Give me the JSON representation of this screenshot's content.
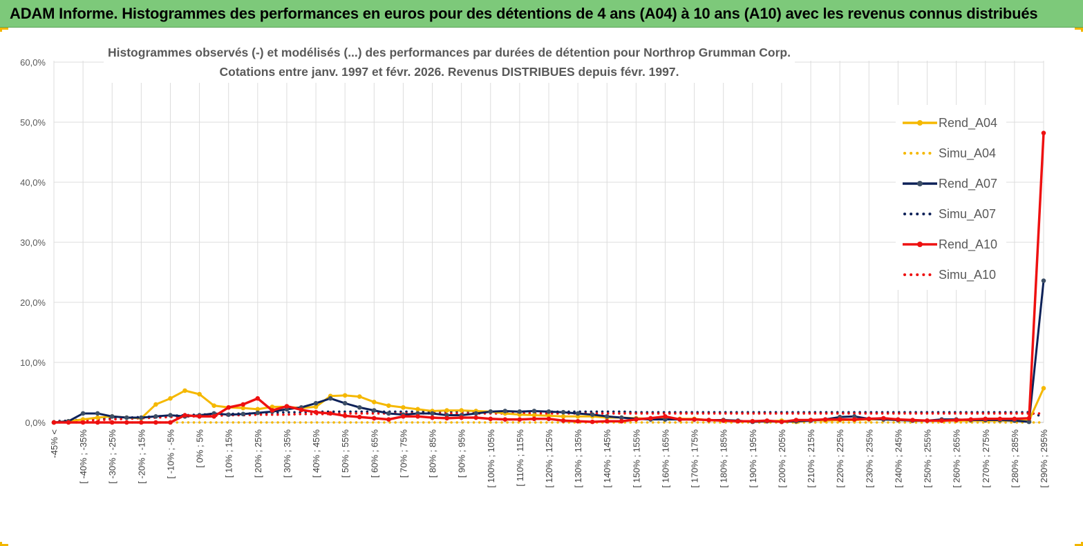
{
  "header": {
    "banner_title": "ADAM Informe. Histogrammes des performances en euros pour des détentions de 4 ans (A04) à 10 ans (A10) avec les revenus connus distribués"
  },
  "colors": {
    "banner_bg": "#7dc97a",
    "a04": "#f5b800",
    "a07": "#0d2158",
    "a10": "#ee1111",
    "grid": "#dcdcdc"
  },
  "chart_data": {
    "type": "line",
    "title_line1": "Histogrammes observés (-) et modélisés (...) des performances par durées de détention pour Northrop Grumman Corp.",
    "title_line2": "Cotations entre janv. 1997 et févr. 2026. Revenus DISTRIBUES depuis févr. 1997.",
    "ylim": [
      0,
      60
    ],
    "yticks": [
      0,
      10,
      20,
      30,
      40,
      50,
      60
    ],
    "ytick_labels": [
      "0,0%",
      "10,0%",
      "20,0%",
      "30,0%",
      "40,0%",
      "50,0%",
      "60,0%"
    ],
    "xtick_labels": [
      "-45% <",
      "[ -40% ; -35%",
      "[ -30% ; -25%",
      "[ -20% ; -15%",
      "[ -10% ; -5%",
      "[ 0% ; 5%",
      "[ 10% ; 15%",
      "[ 20% ; 25%",
      "[ 30% ; 35%",
      "[ 40% ; 45%",
      "[ 50% ; 55%",
      "[ 60% ; 65%",
      "[ 70% ; 75%",
      "[ 80% ; 85%",
      "[ 90% ; 95%",
      "[ 100% ; 105%",
      "[ 110% ; 115%",
      "[ 120% ; 125%",
      "[ 130% ; 135%",
      "[ 140% ; 145%",
      "[ 150% ; 155%",
      "[ 160% ; 165%",
      "[ 170% ; 175%",
      "[ 180% ; 185%",
      "[ 190% ; 195%",
      "[ 200% ; 205%",
      "[ 210% ; 215%",
      "[ 220% ; 225%",
      "[ 230% ; 235%",
      "[ 240% ; 245%",
      "[ 250% ; 255%",
      "[ 260% ; 265%",
      "[ 270% ; 275%",
      "[ 280% ; 285%",
      "[ 290% ; 295%"
    ],
    "num_points": 69,
    "legend_position": "right",
    "series": [
      {
        "name": "Rend_A04",
        "style": "solid",
        "color": "#f5b800",
        "values": [
          0,
          0.2,
          0.5,
          0.8,
          1,
          0.8,
          0.7,
          3,
          4,
          5.3,
          4.7,
          2.8,
          2.5,
          2.4,
          2.2,
          2.6,
          2.6,
          2.4,
          2.6,
          4.4,
          4.5,
          4.3,
          3.4,
          2.8,
          2.5,
          2.2,
          1.9,
          2,
          2,
          1.9,
          1.8,
          1.5,
          1.3,
          1.2,
          1.1,
          1,
          1,
          1,
          0.8,
          0.8,
          0.7,
          0.6,
          0.6,
          0.6,
          0.6,
          0.4,
          0.4,
          0.2,
          0.2,
          0.2,
          0.3,
          0.1,
          0.4,
          0.3,
          0.4,
          0.4,
          0.5,
          0.5,
          0.4,
          0.3,
          0.3,
          0.3,
          0.3,
          0.3,
          0.3,
          0.3,
          0.3,
          0.3,
          5.7
        ]
      },
      {
        "name": "Simu_A04",
        "style": "dotted",
        "color": "#f5b800",
        "values": [
          0,
          0,
          0,
          0,
          0,
          0,
          0,
          0,
          0,
          0,
          0,
          0,
          0,
          0,
          0,
          0,
          0,
          0,
          0,
          0,
          0,
          0,
          0,
          0,
          0,
          0,
          0,
          0,
          0,
          0,
          0,
          0,
          0,
          0,
          0,
          0,
          0,
          0,
          0,
          0,
          0,
          0,
          0,
          0,
          0,
          0,
          0,
          0,
          0,
          0,
          0,
          0,
          0,
          0,
          0,
          0,
          0,
          0,
          0,
          0,
          0,
          0,
          0,
          0,
          0,
          0,
          0,
          0,
          0
        ]
      },
      {
        "name": "Rend_A07",
        "style": "solid",
        "color": "#0d2158",
        "values": [
          0,
          0.2,
          1.5,
          1.5,
          1,
          0.8,
          0.8,
          1,
          1.2,
          1,
          1.2,
          1.5,
          1.3,
          1.4,
          1.6,
          1.8,
          2.2,
          2.5,
          3.2,
          4,
          3.2,
          2.5,
          2,
          1.5,
          1.3,
          1.5,
          1.5,
          1.2,
          1.2,
          1.5,
          1.8,
          1.9,
          1.8,
          1.9,
          1.8,
          1.7,
          1.5,
          1.3,
          1,
          0.8,
          0.6,
          0.5,
          0.5,
          0.5,
          0.5,
          0.4,
          0.4,
          0.3,
          0.1,
          0.2,
          0.1,
          0.2,
          0.3,
          0.5,
          0.9,
          1,
          0.6,
          0.5,
          0.4,
          0.3,
          0.3,
          0.5,
          0.5,
          0.4,
          0.4,
          0.4,
          0.3,
          0.1,
          23.6
        ]
      },
      {
        "name": "Simu_A07",
        "style": "dotted",
        "color": "#0d2158",
        "values": [
          0.2,
          0.3,
          0.5,
          0.6,
          0.7,
          0.8,
          0.9,
          1,
          1.1,
          1.2,
          1.3,
          1.4,
          1.4,
          1.5,
          1.5,
          1.6,
          1.7,
          1.7,
          1.8,
          1.8,
          1.8,
          1.8,
          1.8,
          1.8,
          1.8,
          1.8,
          1.8,
          1.8,
          1.8,
          1.8,
          1.8,
          1.8,
          1.8,
          1.8,
          1.8,
          1.8,
          1.8,
          1.8,
          1.8,
          1.8,
          1.7,
          1.7,
          1.7,
          1.7,
          1.7,
          1.7,
          1.7,
          1.7,
          1.7,
          1.7,
          1.7,
          1.7,
          1.7,
          1.7,
          1.7,
          1.7,
          1.7,
          1.7,
          1.7,
          1.7,
          1.7,
          1.7,
          1.7,
          1.7,
          1.7,
          1.7,
          1.7,
          1.7,
          0.9
        ]
      },
      {
        "name": "Rend_A10",
        "style": "solid",
        "color": "#ee1111",
        "values": [
          0,
          0,
          0,
          0,
          0,
          0,
          0,
          0,
          0,
          1.2,
          1,
          1,
          2.5,
          3,
          4,
          2,
          2.7,
          2.1,
          1.7,
          1.5,
          1.1,
          0.9,
          0.7,
          0.5,
          1,
          1,
          0.8,
          0.7,
          0.8,
          0.8,
          0.6,
          0.5,
          0.5,
          0.6,
          0.6,
          0.3,
          0.2,
          0.1,
          0.2,
          0.2,
          0.5,
          0.7,
          1,
          0.5,
          0.5,
          0.4,
          0.3,
          0.2,
          0.2,
          0.3,
          0.1,
          0.4,
          0.4,
          0.5,
          0.5,
          0.5,
          0.6,
          0.7,
          0.5,
          0.4,
          0.3,
          0.3,
          0.4,
          0.5,
          0.6,
          0.6,
          0.6,
          0.7,
          48.2
        ]
      },
      {
        "name": "Simu_A10",
        "style": "dotted",
        "color": "#ee1111",
        "values": [
          0.1,
          0.2,
          0.3,
          0.4,
          0.5,
          0.6,
          0.7,
          0.8,
          0.9,
          1,
          1,
          1.1,
          1.2,
          1.2,
          1.3,
          1.3,
          1.3,
          1.4,
          1.4,
          1.4,
          1.5,
          1.5,
          1.5,
          1.5,
          1.5,
          1.5,
          1.5,
          1.5,
          1.5,
          1.5,
          1.5,
          1.5,
          1.5,
          1.5,
          1.5,
          1.5,
          1.5,
          1.5,
          1.5,
          1.5,
          1.5,
          1.5,
          1.5,
          1.5,
          1.5,
          1.5,
          1.5,
          1.5,
          1.5,
          1.5,
          1.5,
          1.5,
          1.5,
          1.5,
          1.5,
          1.5,
          1.5,
          1.5,
          1.5,
          1.5,
          1.5,
          1.5,
          1.5,
          1.5,
          1.5,
          1.5,
          1.5,
          1.5,
          1.5
        ]
      }
    ]
  }
}
